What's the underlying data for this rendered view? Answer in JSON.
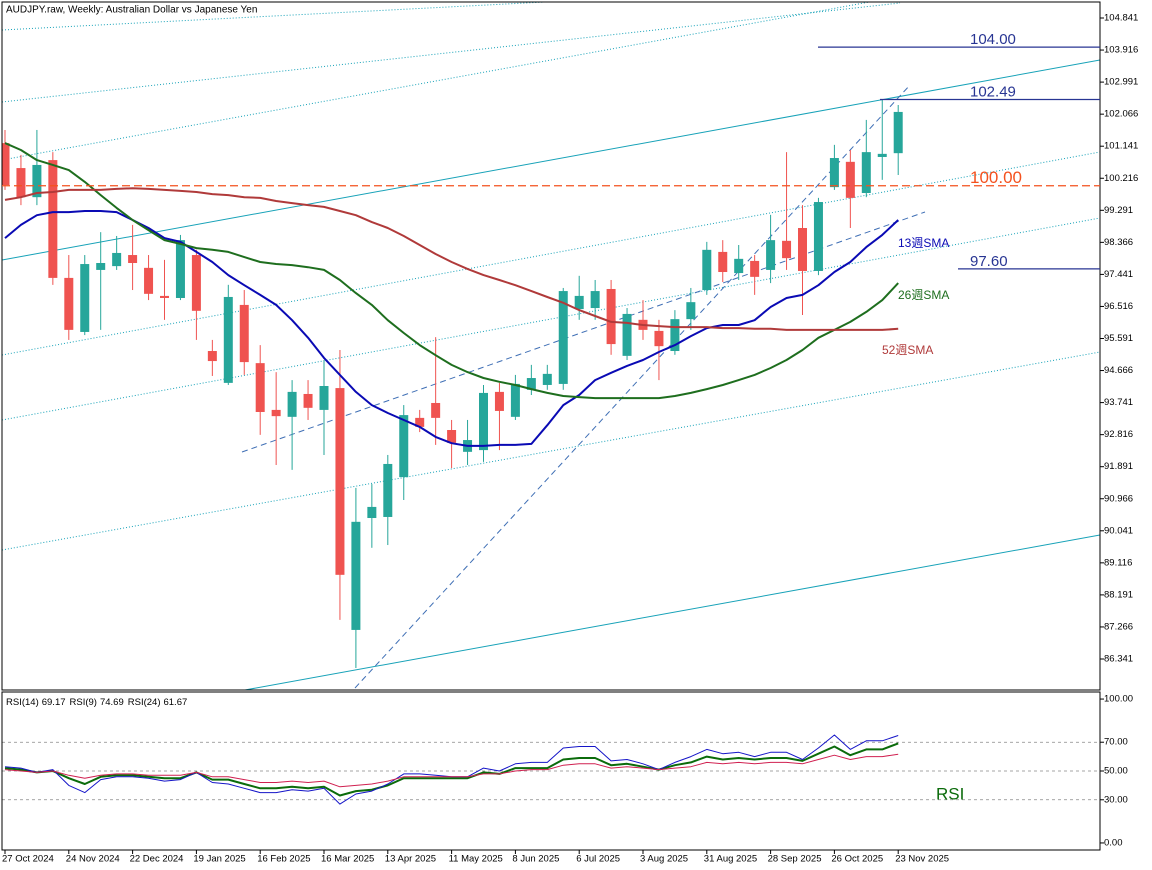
{
  "chart_data": [
    {
      "type": "candlestick",
      "title": "AUDJPY.raw, Weekly:  Australian Dollar vs Japanese Yen",
      "categories": [
        "27 Oct 2024",
        null,
        null,
        null,
        "24 Nov 2024",
        null,
        null,
        null,
        "22 Dec 2024",
        null,
        null,
        null,
        "19 Jan 2025",
        null,
        null,
        null,
        "16 Feb 2025",
        null,
        null,
        null,
        "16 Mar 2025",
        null,
        null,
        null,
        "13 Apr 2025",
        null,
        null,
        null,
        "11 May 2025",
        null,
        null,
        null,
        "8 Jun 2025",
        null,
        null,
        null,
        "6 Jul 2025",
        null,
        null,
        null,
        "3 Aug 2025",
        null,
        null,
        null,
        "31 Aug 2025",
        null,
        null,
        null,
        "28 Sep 2025",
        null,
        null,
        null,
        "26 Oct 2025",
        null,
        null,
        null,
        "23 Nov 2025"
      ],
      "open": [
        101.23,
        100.51,
        99.67,
        100.74,
        97.34,
        95.78,
        97.57,
        97.68,
        98.0,
        97.63,
        96.82,
        96.76,
        98.0,
        95.23,
        94.31,
        96.56,
        94.88,
        93.53,
        93.33,
        93.99,
        93.53,
        94.16,
        87.18,
        90.41,
        90.44,
        91.59,
        93.3,
        93.73,
        92.95,
        92.32,
        92.37,
        94.05,
        93.33,
        94.11,
        94.25,
        94.28,
        96.44,
        96.47,
        97.02,
        95.09,
        96.13,
        95.81,
        95.23,
        96.15,
        96.99,
        98.09,
        97.48,
        97.83,
        97.57,
        98.41,
        98.78,
        97.54,
        99.96,
        100.69,
        99.79,
        100.83,
        100.94
      ],
      "high": [
        101.61,
        100.89,
        101.61,
        100.97,
        98.0,
        98.0,
        98.66,
        98.55,
        98.87,
        98.0,
        97.86,
        98.58,
        98.15,
        95.55,
        97.14,
        96.99,
        95.4,
        94.62,
        94.39,
        94.39,
        94.97,
        95.26,
        91.28,
        91.39,
        92.23,
        93.67,
        93.53,
        95.63,
        93.24,
        93.24,
        94.25,
        94.31,
        94.54,
        94.83,
        94.83,
        97.05,
        97.4,
        97.28,
        97.28,
        96.47,
        96.7,
        96.13,
        96.41,
        97.05,
        98.38,
        98.43,
        98.29,
        98.0,
        99.16,
        100.97,
        99.44,
        99.65,
        101.18,
        101.03,
        101.9,
        102.49,
        102.33
      ],
      "low": [
        99.88,
        99.44,
        99.44,
        97.14,
        95.55,
        95.69,
        95.84,
        97.57,
        96.99,
        96.7,
        96.13,
        96.7,
        95.55,
        94.51,
        94.25,
        94.54,
        92.81,
        91.94,
        91.8,
        93.24,
        92.23,
        87.47,
        86.08,
        89.55,
        89.63,
        90.93,
        92.89,
        92.52,
        91.85,
        91.94,
        92.03,
        92.37,
        93.24,
        93.96,
        94.11,
        94.11,
        96.13,
        96.13,
        95.12,
        94.97,
        95.55,
        94.39,
        95.12,
        95.84,
        96.85,
        97.22,
        97.28,
        96.85,
        97.19,
        97.57,
        96.27,
        97.42,
        99.88,
        98.78,
        99.67,
        100.17,
        100.31
      ],
      "close": [
        100.02,
        99.67,
        100.6,
        97.34,
        95.84,
        97.74,
        97.77,
        98.06,
        97.77,
        96.88,
        96.76,
        98.43,
        96.39,
        94.94,
        96.79,
        94.91,
        93.47,
        93.35,
        94.05,
        93.59,
        94.22,
        88.77,
        90.3,
        90.73,
        91.97,
        93.38,
        93.04,
        93.3,
        92.58,
        92.66,
        94.02,
        93.5,
        94.28,
        94.45,
        94.57,
        96.96,
        96.82,
        96.96,
        95.43,
        96.3,
        95.84,
        95.37,
        96.15,
        96.64,
        98.15,
        97.51,
        97.89,
        97.37,
        98.43,
        97.91,
        97.54,
        99.53,
        100.8,
        99.65,
        100.97,
        100.92,
        102.13
      ],
      "up_color": "#26a69a",
      "down_color": "#ef5350",
      "series": [
        {
          "name": "13週SMA",
          "color": "#0a0ab4",
          "values": [
            98.49,
            98.87,
            99.15,
            99.24,
            99.24,
            99.27,
            99.27,
            99.24,
            99.01,
            98.78,
            98.49,
            98.38,
            98.09,
            97.8,
            97.42,
            97.13,
            96.85,
            96.56,
            96.12,
            95.61,
            95.03,
            94.54,
            94.05,
            93.67,
            93.44,
            93.24,
            93.04,
            92.75,
            92.57,
            92.49,
            92.49,
            92.52,
            92.52,
            92.55,
            93.09,
            93.67,
            93.96,
            94.39,
            94.6,
            94.8,
            94.97,
            95.2,
            95.4,
            95.66,
            95.89,
            95.98,
            95.98,
            96.12,
            96.5,
            96.76,
            96.85,
            97.13,
            97.51,
            97.8,
            98.23,
            98.58,
            99.01
          ]
        },
        {
          "name": "26週SMA",
          "color": "#1e6e1e",
          "values": [
            101.23,
            101.03,
            100.74,
            100.6,
            100.45,
            100.11,
            99.73,
            99.36,
            99.01,
            98.72,
            98.43,
            98.32,
            98.2,
            98.15,
            98.09,
            97.94,
            97.8,
            97.74,
            97.71,
            97.65,
            97.57,
            97.28,
            96.9,
            96.56,
            96.12,
            95.75,
            95.4,
            95.11,
            94.83,
            94.62,
            94.45,
            94.34,
            94.25,
            94.13,
            94.02,
            93.93,
            93.9,
            93.87,
            93.87,
            93.87,
            93.87,
            93.87,
            93.93,
            94.02,
            94.13,
            94.25,
            94.39,
            94.54,
            94.74,
            94.97,
            95.26,
            95.61,
            95.84,
            96.07,
            96.36,
            96.7,
            97.19
          ]
        },
        {
          "name": "52週SMA",
          "color": "#b03a3a",
          "values": [
            99.59,
            99.67,
            99.79,
            99.82,
            99.88,
            99.88,
            99.88,
            99.91,
            99.93,
            99.91,
            99.88,
            99.85,
            99.82,
            99.76,
            99.73,
            99.67,
            99.65,
            99.56,
            99.5,
            99.44,
            99.39,
            99.27,
            99.15,
            98.95,
            98.78,
            98.55,
            98.29,
            98.03,
            97.8,
            97.6,
            97.42,
            97.28,
            97.13,
            96.96,
            96.79,
            96.62,
            96.41,
            96.24,
            96.07,
            96.04,
            95.98,
            95.95,
            95.92,
            95.92,
            95.92,
            95.89,
            95.89,
            95.87,
            95.87,
            95.84,
            95.84,
            95.84,
            95.84,
            95.84,
            95.84,
            95.84,
            95.87
          ]
        }
      ],
      "levels": [
        {
          "value": 104.0,
          "label": "104.00",
          "color": "#283593",
          "style": "solid"
        },
        {
          "value": 102.49,
          "label": "102.49",
          "color": "#283593",
          "style": "solid"
        },
        {
          "value": 100.0,
          "label": "100.00",
          "color": "#f4511e",
          "style": "dashed"
        },
        {
          "value": 97.6,
          "label": "97.60",
          "color": "#283593",
          "style": "solid"
        }
      ],
      "ylim": [
        85.446,
        105.303
      ],
      "yticks": [
        104.841,
        103.916,
        102.991,
        102.066,
        101.141,
        100.216,
        99.291,
        98.366,
        97.441,
        96.516,
        95.591,
        94.666,
        93.741,
        92.816,
        91.891,
        90.966,
        90.041,
        89.116,
        88.191,
        87.266,
        86.341
      ]
    },
    {
      "type": "line",
      "annotation": "RSI",
      "series": [
        {
          "name": "RSI(14)",
          "label": "69.17",
          "color": "#0b6b0b",
          "width": 2,
          "values": [
            52,
            51,
            49,
            50,
            45,
            41,
            46,
            47,
            47,
            46,
            45,
            45,
            49,
            44,
            44,
            41,
            38,
            38,
            39,
            38,
            39,
            33,
            36,
            37,
            40,
            45,
            45,
            45,
            45,
            45,
            49,
            48,
            52,
            52,
            52,
            58,
            59,
            59,
            54,
            55,
            53,
            51,
            54,
            56,
            60,
            58,
            59,
            58,
            59,
            59,
            57,
            62,
            67,
            61,
            65,
            65,
            69.17
          ]
        },
        {
          "name": "RSI(9)",
          "label": "74.69",
          "color": "#1515c8",
          "width": 1,
          "values": [
            53,
            52,
            49,
            51,
            40,
            35,
            44,
            46,
            46,
            45,
            43,
            44,
            49,
            42,
            41,
            38,
            35,
            35,
            37,
            36,
            38,
            27,
            34,
            36,
            41,
            48,
            48,
            47,
            46,
            46,
            52,
            50,
            55,
            56,
            56,
            66,
            67,
            67,
            57,
            58,
            55,
            51,
            56,
            60,
            65,
            62,
            63,
            60,
            63,
            63,
            58,
            66,
            75,
            65,
            71,
            71,
            74.69
          ]
        },
        {
          "name": "RSI(24)",
          "label": "61.67",
          "color": "#d02050",
          "width": 1,
          "values": [
            51,
            50,
            49,
            50,
            47,
            45,
            47,
            48,
            48,
            47,
            47,
            47,
            49,
            46,
            46,
            44,
            42,
            42,
            43,
            42,
            43,
            39,
            40,
            41,
            43,
            46,
            46,
            46,
            46,
            46,
            48,
            48,
            50,
            51,
            51,
            54,
            55,
            55,
            52,
            53,
            52,
            51,
            52,
            53,
            56,
            55,
            56,
            55,
            56,
            56,
            55,
            58,
            61,
            58,
            60,
            60,
            61.67
          ]
        }
      ],
      "levels": [
        70,
        50,
        30
      ],
      "ylim": [
        -4.9,
        104.9
      ],
      "yticks": [
        {
          "value": 100,
          "label": "100.00"
        },
        {
          "value": 70,
          "label": "70.00"
        },
        {
          "value": 50,
          "label": "50.00"
        },
        {
          "value": 30,
          "label": "30.00"
        },
        {
          "value": 0,
          "label": "0.00"
        }
      ]
    }
  ]
}
